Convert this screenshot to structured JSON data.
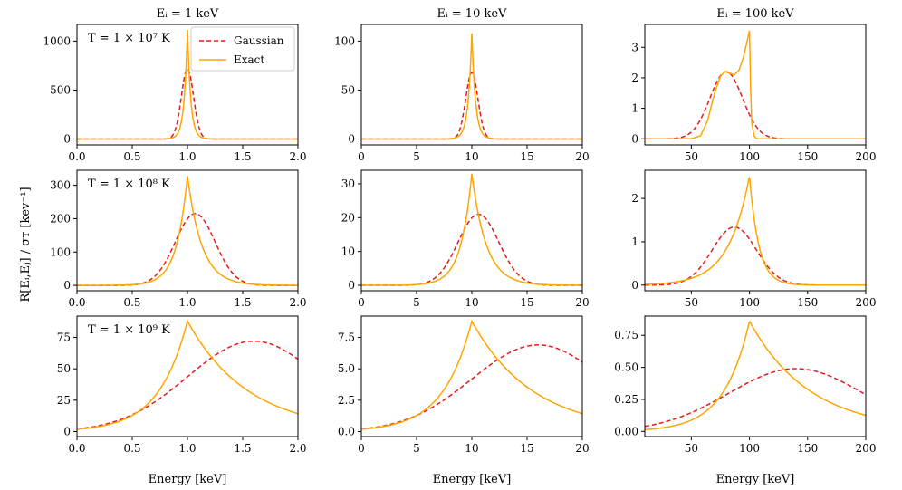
{
  "figure": {
    "ylabel": "R[Eᵢ,Eⱼ] / σᴛ [kev⁻¹]",
    "xlabel": "Energy [keV]"
  },
  "colors": {
    "gaussian": "#e41a1c",
    "exact": "#ffa500"
  },
  "legend": {
    "gaussian": "Gaussian",
    "exact": "Exact"
  },
  "chart_data": [
    {
      "type": "line",
      "row": 0,
      "col": 0,
      "title": "Eᵢ = 1 keV",
      "annotation": "T = 1 × 10⁷ K",
      "xlim": [
        0,
        2
      ],
      "ylim": [
        -60,
        1170
      ],
      "xticks": [
        0,
        0.5,
        1,
        1.5,
        2
      ],
      "xtick_labels": [
        "0.0",
        "0.5",
        "1.0",
        "1.5",
        "2.0"
      ],
      "yticks": [
        0,
        500,
        1000
      ],
      "ytick_labels": [
        "0",
        "500",
        "1000"
      ],
      "series": [
        {
          "name": "Gaussian",
          "values_desc": "gauss",
          "peak_x": 1.0,
          "peak_y": 718,
          "sigma": 0.055
        },
        {
          "name": "Exact",
          "values_desc": "cusp",
          "peak_x": 1.0,
          "peak_y": 1115,
          "width_left": 0.03,
          "width_right": 0.03
        }
      ]
    },
    {
      "type": "line",
      "row": 0,
      "col": 1,
      "title": "Eᵢ = 10 keV",
      "annotation": "",
      "xlim": [
        0,
        20
      ],
      "ylim": [
        -6,
        117
      ],
      "xticks": [
        0,
        5,
        10,
        15,
        20
      ],
      "xtick_labels": [
        "0",
        "5",
        "10",
        "15",
        "20"
      ],
      "yticks": [
        0,
        50,
        100
      ],
      "ytick_labels": [
        "0",
        "50",
        "100"
      ],
      "series": [
        {
          "name": "Gaussian",
          "values_desc": "gauss",
          "peak_x": 10.0,
          "peak_y": 68,
          "sigma": 0.55
        },
        {
          "name": "Exact",
          "values_desc": "cusp",
          "peak_x": 10.0,
          "peak_y": 108,
          "width_left": 0.33,
          "width_right": 0.33
        }
      ]
    },
    {
      "type": "line",
      "row": 0,
      "col": 2,
      "title": "Eᵢ = 100 keV",
      "annotation": "",
      "xlim": [
        10,
        200
      ],
      "ylim": [
        -0.2,
        3.75
      ],
      "xticks": [
        50,
        100,
        150,
        200
      ],
      "xtick_labels": [
        "50",
        "100",
        "150",
        "200"
      ],
      "yticks": [
        0,
        1,
        2,
        3
      ],
      "ytick_labels": [
        "0",
        "1",
        "2",
        "3"
      ],
      "series": [
        {
          "name": "Gaussian",
          "values_desc": "gauss",
          "peak_x": 80,
          "peak_y": 2.2,
          "sigma": 14
        },
        {
          "name": "Exact",
          "values_desc": "double-peak-cutoff",
          "points": [
            [
              10,
              0
            ],
            [
              50,
              0
            ],
            [
              58,
              0.1
            ],
            [
              64,
              0.6
            ],
            [
              70,
              1.5
            ],
            [
              75,
              2.05
            ],
            [
              79,
              2.2
            ],
            [
              83,
              2.15
            ],
            [
              87,
              2.1
            ],
            [
              91,
              2.25
            ],
            [
              95,
              2.7
            ],
            [
              98,
              3.2
            ],
            [
              100,
              3.55
            ],
            [
              101,
              1.6
            ],
            [
              102,
              0.5
            ],
            [
              104,
              0.1
            ],
            [
              106,
              0
            ],
            [
              200,
              0
            ]
          ]
        }
      ]
    },
    {
      "type": "line",
      "row": 1,
      "col": 0,
      "title": "",
      "annotation": "T = 1 × 10⁸ K",
      "xlim": [
        0,
        2
      ],
      "ylim": [
        -16,
        345
      ],
      "xticks": [
        0,
        0.5,
        1,
        1.5,
        2
      ],
      "xtick_labels": [
        "0.0",
        "0.5",
        "1.0",
        "1.5",
        "2.0"
      ],
      "yticks": [
        0,
        100,
        200,
        300
      ],
      "ytick_labels": [
        "0",
        "100",
        "200",
        "300"
      ],
      "series": [
        {
          "name": "Gaussian",
          "values_desc": "gauss",
          "peak_x": 1.07,
          "peak_y": 215,
          "sigma": 0.18
        },
        {
          "name": "Exact",
          "values_desc": "cusp",
          "peak_x": 1.0,
          "peak_y": 328,
          "width_left": 0.1,
          "width_right": 0.13
        }
      ]
    },
    {
      "type": "line",
      "row": 1,
      "col": 1,
      "title": "",
      "annotation": "",
      "xlim": [
        0,
        20
      ],
      "ylim": [
        -1.6,
        34
      ],
      "xticks": [
        0,
        5,
        10,
        15,
        20
      ],
      "xtick_labels": [
        "0",
        "5",
        "10",
        "15",
        "20"
      ],
      "yticks": [
        0,
        10,
        20,
        30
      ],
      "ytick_labels": [
        "0",
        "10",
        "20",
        "30"
      ],
      "series": [
        {
          "name": "Gaussian",
          "values_desc": "gauss",
          "peak_x": 10.6,
          "peak_y": 21,
          "sigma": 1.85
        },
        {
          "name": "Exact",
          "values_desc": "cusp",
          "peak_x": 10.0,
          "peak_y": 33,
          "width_left": 1.0,
          "width_right": 1.3
        }
      ]
    },
    {
      "type": "line",
      "row": 1,
      "col": 2,
      "title": "",
      "annotation": "",
      "xlim": [
        10,
        200
      ],
      "ylim": [
        -0.13,
        2.65
      ],
      "xticks": [
        50,
        100,
        150,
        200
      ],
      "xtick_labels": [
        "50",
        "100",
        "150",
        "200"
      ],
      "yticks": [
        0,
        1,
        2
      ],
      "ytick_labels": [
        "0",
        "1",
        "2"
      ],
      "series": [
        {
          "name": "Gaussian",
          "values_desc": "gauss",
          "peak_x": 87,
          "peak_y": 1.34,
          "sigma": 19
        },
        {
          "name": "Exact",
          "values_desc": "cusp",
          "peak_x": 100,
          "peak_y": 2.52,
          "width_left": 18,
          "width_right": 8
        }
      ]
    },
    {
      "type": "line",
      "row": 2,
      "col": 0,
      "title": "",
      "annotation": "T = 1 × 10⁹ K",
      "xlim": [
        0,
        2
      ],
      "ylim": [
        -4,
        92
      ],
      "xticks": [
        0,
        0.5,
        1,
        1.5,
        2
      ],
      "xtick_labels": [
        "0.0",
        "0.5",
        "1.0",
        "1.5",
        "2.0"
      ],
      "yticks": [
        0,
        25,
        50,
        75
      ],
      "ytick_labels": [
        "0",
        "25",
        "50",
        "75"
      ],
      "series": [
        {
          "name": "Gaussian",
          "values_desc": "gauss",
          "peak_x": 1.6,
          "peak_y": 72,
          "sigma": 0.6
        },
        {
          "name": "Exact",
          "values_desc": "cusp",
          "peak_x": 1.0,
          "peak_y": 88,
          "width_left": 0.26,
          "width_right": 0.55
        }
      ]
    },
    {
      "type": "line",
      "row": 2,
      "col": 1,
      "title": "",
      "annotation": "",
      "xlim": [
        0,
        20
      ],
      "ylim": [
        -0.4,
        9.2
      ],
      "xticks": [
        0,
        5,
        10,
        15,
        20
      ],
      "xtick_labels": [
        "0",
        "5",
        "10",
        "15",
        "20"
      ],
      "yticks": [
        0,
        2.5,
        5,
        7.5
      ],
      "ytick_labels": [
        "0.0",
        "2.5",
        "5.0",
        "7.5"
      ],
      "series": [
        {
          "name": "Gaussian",
          "values_desc": "gauss",
          "peak_x": 16,
          "peak_y": 6.9,
          "sigma": 6
        },
        {
          "name": "Exact",
          "values_desc": "cusp",
          "peak_x": 10.0,
          "peak_y": 8.8,
          "width_left": 2.6,
          "width_right": 5.5
        }
      ]
    },
    {
      "type": "line",
      "row": 2,
      "col": 2,
      "title": "",
      "annotation": "",
      "xlim": [
        10,
        200
      ],
      "ylim": [
        -0.04,
        0.9
      ],
      "xticks": [
        50,
        100,
        150,
        200
      ],
      "xtick_labels": [
        "50",
        "100",
        "150",
        "200"
      ],
      "yticks": [
        0,
        0.25,
        0.5,
        0.75
      ],
      "ytick_labels": [
        "0.00",
        "0.25",
        "0.50",
        "0.75"
      ],
      "series": [
        {
          "name": "Gaussian",
          "values_desc": "gauss",
          "peak_x": 140,
          "peak_y": 0.49,
          "sigma": 58
        },
        {
          "name": "Exact",
          "values_desc": "cusp",
          "peak_x": 100,
          "peak_y": 0.86,
          "width_left": 22,
          "width_right": 52
        }
      ]
    }
  ]
}
